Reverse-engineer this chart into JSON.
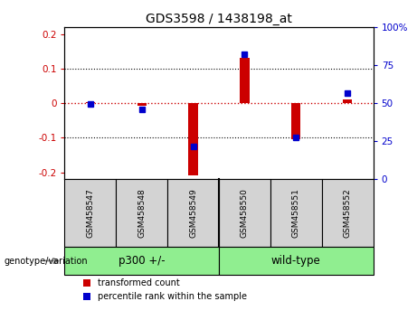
{
  "title": "GDS3598 / 1438198_at",
  "samples": [
    "GSM458547",
    "GSM458548",
    "GSM458549",
    "GSM458550",
    "GSM458551",
    "GSM458552"
  ],
  "transformed_count": [
    0.003,
    -0.008,
    -0.21,
    0.13,
    -0.105,
    0.012
  ],
  "percentile_rank_mapped": [
    -0.002,
    -0.018,
    -0.125,
    0.143,
    -0.098,
    0.03
  ],
  "groups": [
    {
      "label": "p300 +/-",
      "start": 0,
      "end": 2,
      "color": "#90ee90"
    },
    {
      "label": "wild-type",
      "start": 3,
      "end": 5,
      "color": "#90ee90"
    }
  ],
  "group_label_prefix": "genotype/variation",
  "ylim_left": [
    -0.22,
    0.22
  ],
  "ylim_right": [
    0,
    100
  ],
  "yticks_left": [
    -0.2,
    -0.1,
    0.0,
    0.1,
    0.2
  ],
  "yticks_right": [
    0,
    25,
    50,
    75,
    100
  ],
  "yticklabels_left": [
    "-0.2",
    "-0.1",
    "0",
    "0.1",
    "0.2"
  ],
  "yticklabels_right": [
    "0",
    "25",
    "50",
    "75",
    "100%"
  ],
  "left_axis_color": "#cc0000",
  "right_axis_color": "#0000cc",
  "bar_color_red": "#cc0000",
  "bar_color_blue": "#0000cc",
  "zero_line_color": "#cc0000",
  "sample_box_color": "#d3d3d3",
  "legend_red_label": "transformed count",
  "legend_blue_label": "percentile rank within the sample",
  "bar_width": 0.18
}
